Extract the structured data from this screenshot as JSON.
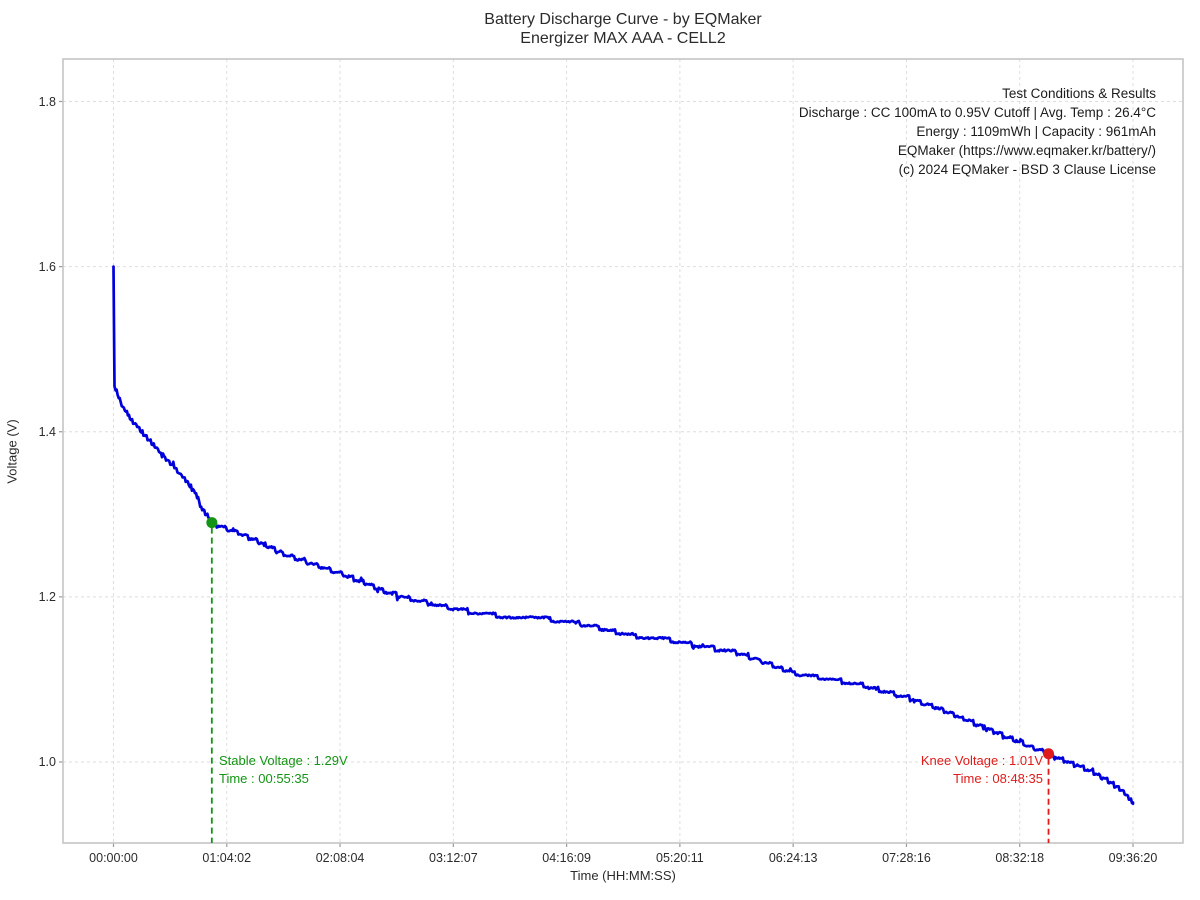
{
  "title": {
    "line1": "Battery Discharge Curve - by EQMaker",
    "line2": "Energizer MAX AAA - CELL2"
  },
  "conditions": {
    "lines": [
      "Test Conditions & Results",
      "Discharge : CC 100mA to 0.95V Cutoff | Avg. Temp : 26.4°C",
      "Energy : 1109mWh | Capacity : 961mAh",
      "EQMaker (https://www.eqmaker.kr/battery/)",
      "(c) 2024 EQMaker - BSD 3 Clause License"
    ]
  },
  "chart_data": {
    "type": "line",
    "title": "Battery Discharge Curve - by EQMaker",
    "subtitle": "Energizer MAX AAA - CELL2",
    "xlabel": "Time (HH:MM:SS)",
    "ylabel": "Voltage (V)",
    "grid": true,
    "line_color": "#0000dd",
    "ylim_labeled": [
      1.0,
      1.8
    ],
    "x_ticks": [
      {
        "label": "00:00:00",
        "seconds": 0
      },
      {
        "label": "01:04:02",
        "seconds": 3842
      },
      {
        "label": "02:08:04",
        "seconds": 7684
      },
      {
        "label": "03:12:07",
        "seconds": 11527
      },
      {
        "label": "04:16:09",
        "seconds": 15369
      },
      {
        "label": "05:20:11",
        "seconds": 19211
      },
      {
        "label": "06:24:13",
        "seconds": 23053
      },
      {
        "label": "07:28:16",
        "seconds": 26896
      },
      {
        "label": "08:32:18",
        "seconds": 30738
      },
      {
        "label": "09:36:20",
        "seconds": 34580
      }
    ],
    "y_ticks": [
      "1.0",
      "1.2",
      "1.4",
      "1.6",
      "1.8"
    ],
    "y_tick_values": [
      1.0,
      1.2,
      1.4,
      1.6,
      1.8
    ],
    "series": [
      {
        "name": "CELL2 discharge voltage",
        "points_t_seconds_voltage": [
          [
            0,
            1.6
          ],
          [
            12,
            1.455
          ],
          [
            300,
            1.432
          ],
          [
            600,
            1.415
          ],
          [
            900,
            1.402
          ],
          [
            1200,
            1.39
          ],
          [
            1500,
            1.378
          ],
          [
            1800,
            1.366
          ],
          [
            2100,
            1.355
          ],
          [
            2400,
            1.344
          ],
          [
            2700,
            1.33
          ],
          [
            3000,
            1.308
          ],
          [
            3335,
            1.29
          ],
          [
            3700,
            1.284
          ],
          [
            4100,
            1.279
          ],
          [
            4600,
            1.272
          ],
          [
            5200,
            1.262
          ],
          [
            5800,
            1.252
          ],
          [
            6400,
            1.244
          ],
          [
            7000,
            1.237
          ],
          [
            7684,
            1.229
          ],
          [
            8400,
            1.219
          ],
          [
            9200,
            1.207
          ],
          [
            10000,
            1.198
          ],
          [
            10800,
            1.191
          ],
          [
            11527,
            1.186
          ],
          [
            12400,
            1.18
          ],
          [
            13300,
            1.176
          ],
          [
            14300,
            1.174
          ],
          [
            15369,
            1.171
          ],
          [
            16400,
            1.163
          ],
          [
            17400,
            1.154
          ],
          [
            18300,
            1.15
          ],
          [
            19211,
            1.146
          ],
          [
            20000,
            1.139
          ],
          [
            20800,
            1.136
          ],
          [
            21600,
            1.127
          ],
          [
            22300,
            1.118
          ],
          [
            23053,
            1.108
          ],
          [
            23800,
            1.103
          ],
          [
            24600,
            1.098
          ],
          [
            25500,
            1.092
          ],
          [
            26200,
            1.085
          ],
          [
            26896,
            1.079
          ],
          [
            27600,
            1.07
          ],
          [
            28400,
            1.059
          ],
          [
            29200,
            1.047
          ],
          [
            30000,
            1.035
          ],
          [
            30738,
            1.024
          ],
          [
            31715,
            1.01
          ],
          [
            32400,
            1.0
          ],
          [
            33100,
            0.99
          ],
          [
            33800,
            0.976
          ],
          [
            34300,
            0.962
          ],
          [
            34580,
            0.951
          ]
        ]
      }
    ],
    "annotations": {
      "stable": {
        "line1": "Stable Voltage : 1.29V",
        "line2": "Time : 00:55:35",
        "t_seconds": 3335,
        "voltage": 1.29,
        "color": "#149414"
      },
      "knee": {
        "line1": "Knee Voltage : 1.01V",
        "line2": "Time : 08:48:35",
        "t_seconds": 31715,
        "voltage": 1.01,
        "color": "#e01b1b"
      }
    }
  }
}
